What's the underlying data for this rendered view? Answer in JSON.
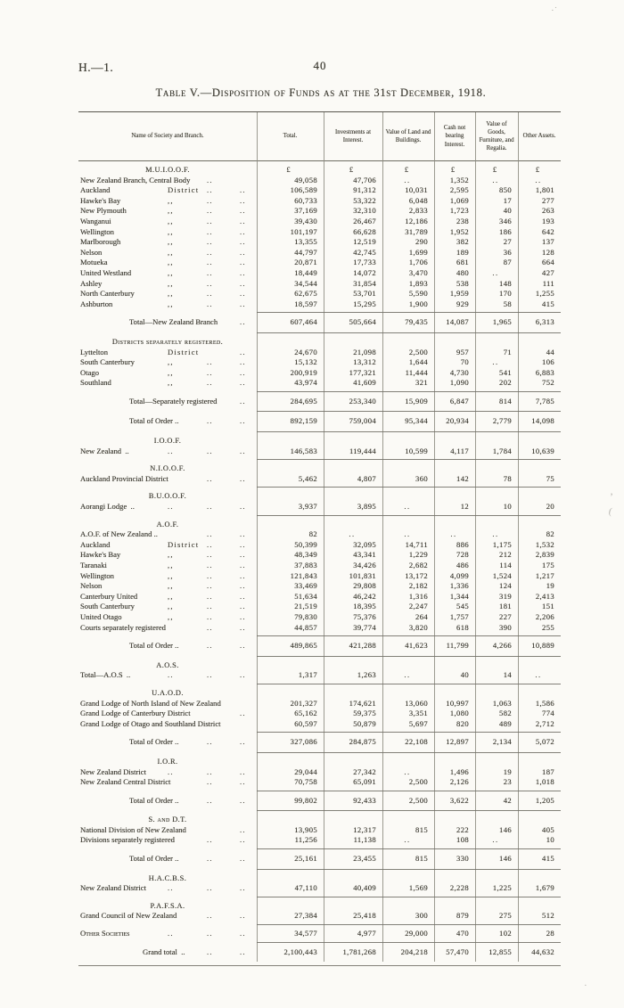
{
  "page": {
    "doc_ref": "H.—1.",
    "page_number": "40",
    "title": "Table V.—Disposition of Funds as at the 31st December, 1918."
  },
  "table": {
    "currency": "£",
    "columns": [
      "Name of Society and Branch.",
      "Total.",
      "Investments at Interest.",
      "Value of Land and Buildings.",
      "Cash not bearing Interest.",
      "Value of Goods, Furniture, and Regalia.",
      "Other Assets."
    ],
    "blocks": [
      {
        "type": "section",
        "header": "M.U.I.O.O.F.",
        "units": true,
        "rows": [
          {
            "n": "New Zealand Branch, Central Body",
            "s": [
              "",
              "..",
              ""
            ],
            "v": [
              "49,058",
              "47,706",
              "..",
              "1,352",
              "..",
              ".."
            ]
          },
          {
            "n": "Auckland",
            "s": [
              "District",
              "..",
              ".."
            ],
            "v": [
              "106,589",
              "91,312",
              "10,031",
              "2,595",
              "850",
              "1,801"
            ]
          },
          {
            "n": "Hawke's Bay",
            "s": [
              ",,",
              "..",
              ".."
            ],
            "v": [
              "60,733",
              "53,322",
              "6,048",
              "1,069",
              "17",
              "277"
            ]
          },
          {
            "n": "New Plymouth",
            "s": [
              ",,",
              "..",
              ".."
            ],
            "v": [
              "37,169",
              "32,310",
              "2,833",
              "1,723",
              "40",
              "263"
            ]
          },
          {
            "n": "Wanganui",
            "s": [
              ",,",
              "..",
              ".."
            ],
            "v": [
              "39,430",
              "26,467",
              "12,186",
              "238",
              "346",
              "193"
            ]
          },
          {
            "n": "Wellington",
            "s": [
              ",,",
              "..",
              ".."
            ],
            "v": [
              "101,197",
              "66,628",
              "31,789",
              "1,952",
              "186",
              "642"
            ]
          },
          {
            "n": "Marlborough",
            "s": [
              ",,",
              "..",
              ".."
            ],
            "v": [
              "13,355",
              "12,519",
              "290",
              "382",
              "27",
              "137"
            ]
          },
          {
            "n": "Nelson",
            "s": [
              ",,",
              "..",
              ".."
            ],
            "v": [
              "44,797",
              "42,745",
              "1,699",
              "189",
              "36",
              "128"
            ]
          },
          {
            "n": "Motueka",
            "s": [
              ",,",
              "..",
              ".."
            ],
            "v": [
              "20,871",
              "17,733",
              "1,706",
              "681",
              "87",
              "664"
            ]
          },
          {
            "n": "United Westland",
            "s": [
              ",,",
              "..",
              ".."
            ],
            "v": [
              "18,449",
              "14,072",
              "3,470",
              "480",
              "..",
              "427"
            ]
          },
          {
            "n": "Ashley",
            "s": [
              ",,",
              "..",
              ".."
            ],
            "v": [
              "34,544",
              "31,854",
              "1,893",
              "538",
              "148",
              "111"
            ]
          },
          {
            "n": "North Canterbury",
            "s": [
              ",,",
              "..",
              ".."
            ],
            "v": [
              "62,675",
              "53,701",
              "5,590",
              "1,959",
              "170",
              "1,255"
            ]
          },
          {
            "n": "Ashburton",
            "s": [
              ",,",
              "..",
              ".."
            ],
            "v": [
              "18,597",
              "15,295",
              "1,900",
              "929",
              "58",
              "415"
            ]
          }
        ]
      },
      {
        "type": "total",
        "rows": [
          {
            "n": "Total—New Zealand Branch",
            "i": 1,
            "s": [
              "",
              "",
              ".."
            ],
            "v": [
              "607,464",
              "505,664",
              "79,435",
              "14,087",
              "1,965",
              "6,313"
            ]
          }
        ]
      },
      {
        "type": "section",
        "header": "Districts separately registered.",
        "sc": true,
        "rows": [
          {
            "n": "Lyttelton",
            "s": [
              "District",
              "",
              ".."
            ],
            "v": [
              "24,670",
              "21,098",
              "2,500",
              "957",
              "71",
              "44"
            ]
          },
          {
            "n": "South Canterbury",
            "s": [
              ",,",
              "..",
              ".."
            ],
            "v": [
              "15,132",
              "13,312",
              "1,644",
              "70",
              "..",
              "106"
            ]
          },
          {
            "n": "Otago",
            "s": [
              ",,",
              "..",
              ".."
            ],
            "v": [
              "200,919",
              "177,321",
              "11,444",
              "4,730",
              "541",
              "6,883"
            ]
          },
          {
            "n": "Southland",
            "s": [
              ",,",
              "..",
              ".."
            ],
            "v": [
              "43,974",
              "41,609",
              "321",
              "1,090",
              "202",
              "752"
            ]
          }
        ]
      },
      {
        "type": "total",
        "rows": [
          {
            "n": "Total—Separately registered",
            "i": 1,
            "s": [
              "",
              "",
              ".."
            ],
            "v": [
              "284,695",
              "253,340",
              "15,909",
              "6,847",
              "814",
              "7,785"
            ]
          }
        ]
      },
      {
        "type": "total",
        "rows": [
          {
            "n": "Total of Order ..",
            "i": 1,
            "s": [
              "",
              "..",
              ".."
            ],
            "v": [
              "892,159",
              "759,004",
              "95,344",
              "20,934",
              "2,779",
              "14,098"
            ]
          }
        ]
      },
      {
        "type": "section",
        "header": "I.O.O.F.",
        "rows": [
          {
            "n": "New Zealand  ..",
            "s": [
              "..",
              "..",
              ".."
            ],
            "v": [
              "146,583",
              "119,444",
              "10,599",
              "4,117",
              "1,784",
              "10,639"
            ]
          }
        ]
      },
      {
        "type": "section",
        "header": "N.I.O.O.F.",
        "rows": [
          {
            "n": "Auckland Provincial District",
            "s": [
              "",
              "..",
              ".."
            ],
            "v": [
              "5,462",
              "4,807",
              "360",
              "142",
              "78",
              "75"
            ]
          }
        ]
      },
      {
        "type": "section",
        "header": "B.U.O.O.F.",
        "rows": [
          {
            "n": "Aorangi Lodge  ..",
            "s": [
              "..",
              "..",
              ".."
            ],
            "v": [
              "3,937",
              "3,895",
              "..",
              "12",
              "10",
              "20"
            ]
          }
        ]
      },
      {
        "type": "section",
        "header": "A.O.F.",
        "rows": [
          {
            "n": "A.O.F. of New Zealand ..",
            "s": [
              "",
              "..",
              ".."
            ],
            "v": [
              "82",
              "..",
              "..",
              "..",
              "..",
              "82"
            ]
          },
          {
            "n": "Auckland",
            "s": [
              "District",
              "..",
              ".."
            ],
            "v": [
              "50,399",
              "32,095",
              "14,711",
              "886",
              "1,175",
              "1,532"
            ]
          },
          {
            "n": "Hawke's Bay",
            "s": [
              ",,",
              "..",
              ".."
            ],
            "v": [
              "48,349",
              "43,341",
              "1,229",
              "728",
              "212",
              "2,839"
            ]
          },
          {
            "n": "Taranaki",
            "s": [
              ",,",
              "..",
              ".."
            ],
            "v": [
              "37,883",
              "34,426",
              "2,682",
              "486",
              "114",
              "175"
            ]
          },
          {
            "n": "Wellington",
            "s": [
              ",,",
              "..",
              ".."
            ],
            "v": [
              "121,843",
              "101,831",
              "13,172",
              "4,099",
              "1,524",
              "1,217"
            ]
          },
          {
            "n": "Nelson",
            "s": [
              ",,",
              "..",
              ".."
            ],
            "v": [
              "33,469",
              "29,808",
              "2,182",
              "1,336",
              "124",
              "19"
            ]
          },
          {
            "n": "Canterbury United",
            "s": [
              ",,",
              "..",
              ".."
            ],
            "v": [
              "51,634",
              "46,242",
              "1,316",
              "1,344",
              "319",
              "2,413"
            ]
          },
          {
            "n": "South Canterbury",
            "s": [
              ",,",
              "..",
              ".."
            ],
            "v": [
              "21,519",
              "18,395",
              "2,247",
              "545",
              "181",
              "151"
            ]
          },
          {
            "n": "United Otago",
            "s": [
              ",,",
              "..",
              ".."
            ],
            "v": [
              "79,830",
              "75,376",
              "264",
              "1,757",
              "227",
              "2,206"
            ]
          },
          {
            "n": "Courts separately registered",
            "s": [
              "",
              "..",
              ".."
            ],
            "v": [
              "44,857",
              "39,774",
              "3,820",
              "618",
              "390",
              "255"
            ]
          }
        ]
      },
      {
        "type": "total",
        "rows": [
          {
            "n": "Total of Order ..",
            "i": 1,
            "s": [
              "",
              "..",
              ".."
            ],
            "v": [
              "489,865",
              "421,288",
              "41,623",
              "11,799",
              "4,266",
              "10,889"
            ]
          }
        ]
      },
      {
        "type": "section",
        "header": "A.O.S.",
        "rows": [
          {
            "n": "Total—A.O.S  ..",
            "s": [
              "..",
              "..",
              ".."
            ],
            "v": [
              "1,317",
              "1,263",
              "..",
              "40",
              "14",
              ".."
            ]
          }
        ]
      },
      {
        "type": "section",
        "header": "U.A.O.D.",
        "rows": [
          {
            "n": "Grand Lodge of North Island of New Zealand",
            "s": [
              "",
              "",
              ""
            ],
            "v": [
              "201,327",
              "174,621",
              "13,060",
              "10,997",
              "1,063",
              "1,586"
            ]
          },
          {
            "n": "Grand Lodge of Canterbury District",
            "s": [
              "",
              "",
              ".."
            ],
            "v": [
              "65,162",
              "59,375",
              "3,351",
              "1,080",
              "582",
              "774"
            ]
          },
          {
            "n": "Grand Lodge of Otago and Southland District",
            "s": [
              "",
              "",
              ""
            ],
            "v": [
              "60,597",
              "50,879",
              "5,697",
              "820",
              "489",
              "2,712"
            ]
          }
        ]
      },
      {
        "type": "total",
        "rows": [
          {
            "n": "Total of Order ..",
            "i": 1,
            "s": [
              "",
              "..",
              ".."
            ],
            "v": [
              "327,086",
              "284,875",
              "22,108",
              "12,897",
              "2,134",
              "5,072"
            ]
          }
        ]
      },
      {
        "type": "section",
        "header": "I.O.R.",
        "rows": [
          {
            "n": "New Zealand District",
            "s": [
              "..",
              "..",
              ".."
            ],
            "v": [
              "29,044",
              "27,342",
              "..",
              "1,496",
              "19",
              "187"
            ]
          },
          {
            "n": "New Zealand Central District",
            "s": [
              "",
              "..",
              ".."
            ],
            "v": [
              "70,758",
              "65,091",
              "2,500",
              "2,126",
              "23",
              "1,018"
            ]
          }
        ]
      },
      {
        "type": "total",
        "rows": [
          {
            "n": "Total of Order ..",
            "i": 1,
            "s": [
              "",
              "..",
              ".."
            ],
            "v": [
              "99,802",
              "92,433",
              "2,500",
              "3,622",
              "42",
              "1,205"
            ]
          }
        ]
      },
      {
        "type": "section",
        "header": "S. and D.T.",
        "sc": true,
        "rows": [
          {
            "n": "National Division of New Zealand",
            "s": [
              "",
              "",
              ".."
            ],
            "v": [
              "13,905",
              "12,317",
              "815",
              "222",
              "146",
              "405"
            ]
          },
          {
            "n": "Divisions separately registered",
            "s": [
              "",
              "..",
              ".."
            ],
            "v": [
              "11,256",
              "11,138",
              "..",
              "108",
              "..",
              "10"
            ]
          }
        ]
      },
      {
        "type": "total",
        "rows": [
          {
            "n": "Total of Order ..",
            "i": 1,
            "s": [
              "",
              "..",
              ".."
            ],
            "v": [
              "25,161",
              "23,455",
              "815",
              "330",
              "146",
              "415"
            ]
          }
        ]
      },
      {
        "type": "section",
        "header": "H.A.C.B.S.",
        "rows": [
          {
            "n": "New Zealand District",
            "s": [
              "..",
              "..",
              ".."
            ],
            "v": [
              "47,110",
              "40,409",
              "1,569",
              "2,228",
              "1,225",
              "1,679"
            ]
          }
        ]
      },
      {
        "type": "section",
        "header": "P.A.F.S.A.",
        "rows": [
          {
            "n": "Grand Council of New Zealand",
            "s": [
              "",
              "..",
              ".."
            ],
            "v": [
              "27,384",
              "25,418",
              "300",
              "879",
              "275",
              "512"
            ]
          }
        ]
      },
      {
        "type": "section",
        "header": null,
        "rows": [
          {
            "n": "Other Societies",
            "sc": true,
            "s": [
              "..",
              "..",
              ".."
            ],
            "v": [
              "34,577",
              "4,977",
              "29,000",
              "470",
              "102",
              "28"
            ]
          }
        ]
      },
      {
        "type": "total",
        "rows": [
          {
            "n": "Grand total  ..",
            "i": 2,
            "s": [
              "",
              "..",
              ".."
            ],
            "v": [
              "2,100,443",
              "1,781,268",
              "204,218",
              "57,470",
              "12,855",
              "44,632"
            ]
          }
        ]
      }
    ]
  }
}
